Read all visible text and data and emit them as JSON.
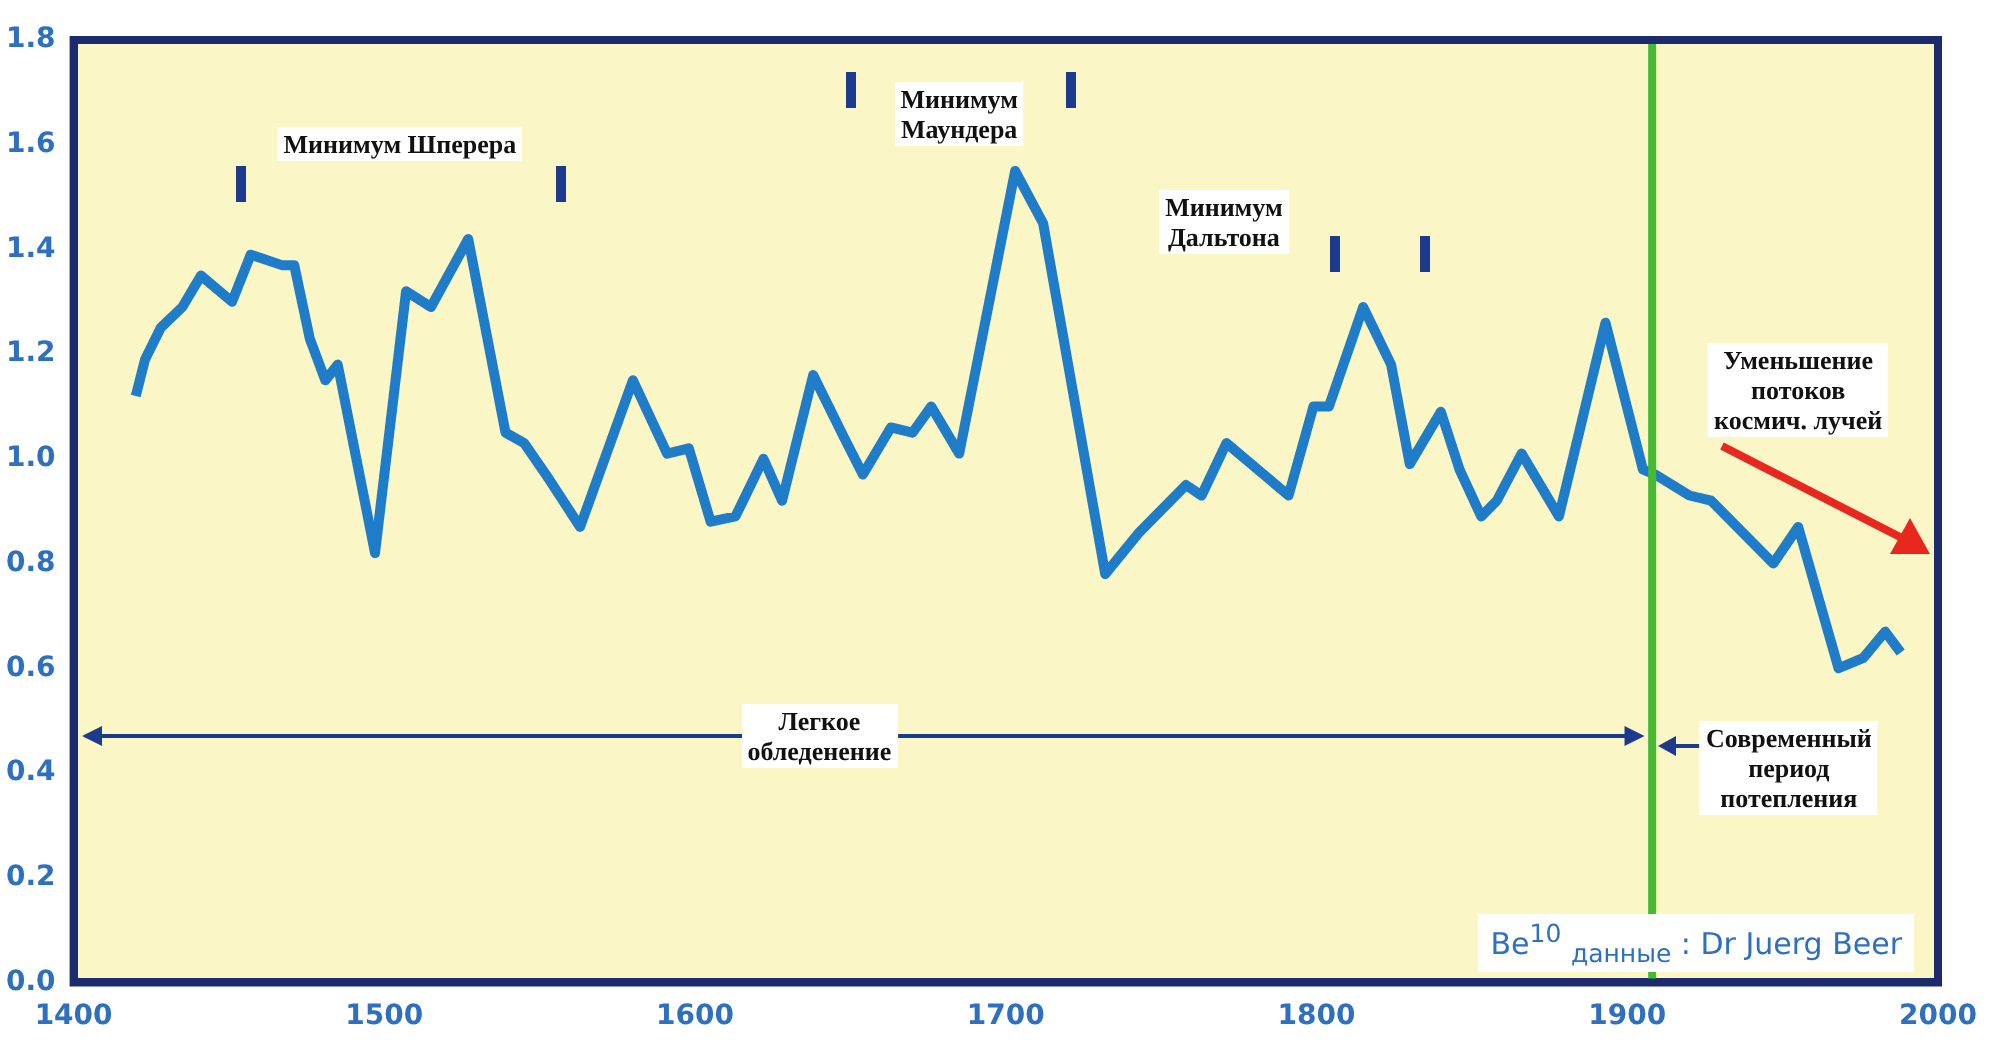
{
  "chart_data": {
    "type": "line",
    "x": [
      1420,
      1423,
      1428,
      1435,
      1441,
      1451,
      1457,
      1467,
      1471,
      1476,
      1481,
      1485,
      1497,
      1507,
      1515,
      1527,
      1539,
      1545,
      1552,
      1563,
      1580,
      1591,
      1598,
      1605,
      1613,
      1622,
      1628,
      1638,
      1648,
      1654,
      1663,
      1670,
      1676,
      1685,
      1703,
      1712,
      1732,
      1743,
      1758,
      1763,
      1771,
      1791,
      1799,
      1804,
      1815,
      1824,
      1830,
      1840,
      1846,
      1853,
      1858,
      1866,
      1878,
      1893,
      1905,
      1909,
      1920,
      1927,
      1947,
      1955,
      1968,
      1976,
      1983,
      1988
    ],
    "series": [
      {
        "color": "#1f7cc8",
        "values": [
          1.12,
          1.19,
          1.25,
          1.29,
          1.35,
          1.3,
          1.39,
          1.37,
          1.37,
          1.23,
          1.15,
          1.18,
          0.82,
          1.32,
          1.29,
          1.42,
          1.05,
          1.03,
          0.97,
          0.87,
          1.15,
          1.01,
          1.02,
          0.88,
          0.89,
          1.0,
          0.92,
          1.16,
          1.04,
          0.97,
          1.06,
          1.05,
          1.1,
          1.01,
          1.55,
          1.45,
          0.78,
          0.86,
          0.95,
          0.93,
          1.03,
          0.93,
          1.1,
          1.1,
          1.29,
          1.18,
          0.99,
          1.09,
          0.98,
          0.89,
          0.92,
          1.01,
          0.89,
          1.26,
          0.98,
          0.97,
          0.93,
          0.92,
          0.8,
          0.87,
          0.6,
          0.62,
          0.67,
          0.63
        ]
      }
    ],
    "xlim": [
      1400,
      2000
    ],
    "xticks": [
      1400,
      1500,
      1600,
      1700,
      1800,
      1900,
      2000
    ],
    "ylim": [
      0,
      1.8
    ],
    "yticks": [
      {
        "value": 0,
        "label": "0.0"
      },
      0.2,
      0.4,
      0.6,
      0.8,
      {
        "value": 1,
        "label": "1.0"
      },
      1.2,
      1.4,
      1.6,
      1.8
    ],
    "grid": false,
    "legend": false,
    "marker": "none",
    "line_style": "solid",
    "ref_lines": [
      {
        "axis": "x",
        "value": 1908,
        "color": "#44bb33"
      }
    ],
    "annotations": [
      "Минимум Шперера",
      "Минимум\nМаундера",
      "Минимум\nДальтона",
      "Легкое\nобледенение",
      "Современный\nпериод\nпотепления",
      "Уменьшение\nпотоков\nкосмич. лучей",
      "Be$^{10}$ $_{данные}$ : Dr Juerg Beer"
    ]
  }
}
